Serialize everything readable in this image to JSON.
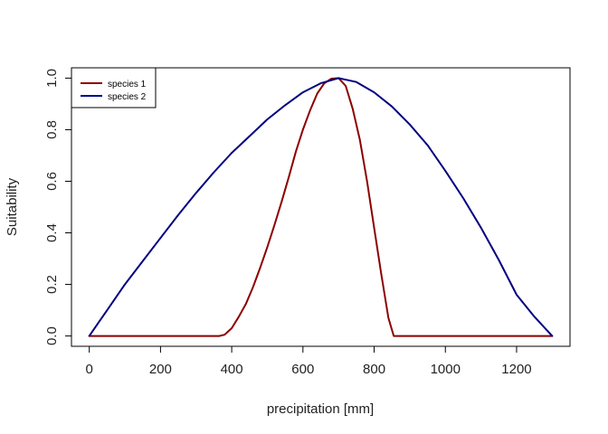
{
  "chart_data": {
    "type": "line",
    "title": "",
    "xlabel": "precipitation [mm]",
    "ylabel": "Suitability",
    "xlim": [
      -50,
      1350
    ],
    "ylim": [
      -0.04,
      1.04
    ],
    "xticks": [
      0,
      200,
      400,
      600,
      800,
      1000,
      1200
    ],
    "yticks": [
      0.0,
      0.2,
      0.4,
      0.6,
      0.8,
      1.0
    ],
    "xtick_labels": [
      "0",
      "200",
      "400",
      "600",
      "800",
      "1000",
      "1200"
    ],
    "ytick_labels": [
      "0.0",
      "0.2",
      "0.4",
      "0.6",
      "0.8",
      "1.0"
    ],
    "legend_position": "top-left",
    "grid": false,
    "series": [
      {
        "name": "species 1",
        "color": "#8B0000",
        "x": [
          0,
          100,
          200,
          300,
          365,
          380,
          400,
          420,
          440,
          460,
          480,
          500,
          520,
          540,
          560,
          580,
          600,
          620,
          640,
          660,
          680,
          700,
          720,
          740,
          760,
          780,
          800,
          820,
          840,
          855,
          900,
          1000,
          1100,
          1200,
          1300
        ],
        "y": [
          0,
          0,
          0,
          0,
          0,
          0.005,
          0.03,
          0.075,
          0.125,
          0.19,
          0.265,
          0.345,
          0.43,
          0.52,
          0.615,
          0.715,
          0.8,
          0.875,
          0.94,
          0.98,
          0.998,
          1.0,
          0.97,
          0.88,
          0.76,
          0.6,
          0.42,
          0.24,
          0.07,
          0,
          0,
          0,
          0,
          0,
          0
        ]
      },
      {
        "name": "species 2",
        "color": "#000080",
        "x": [
          0,
          25,
          50,
          75,
          100,
          150,
          200,
          250,
          300,
          350,
          400,
          450,
          500,
          550,
          600,
          650,
          700,
          750,
          800,
          850,
          900,
          950,
          1000,
          1050,
          1100,
          1150,
          1200,
          1250,
          1300
        ],
        "y": [
          0,
          0.05,
          0.1,
          0.15,
          0.2,
          0.29,
          0.38,
          0.47,
          0.555,
          0.635,
          0.71,
          0.775,
          0.84,
          0.895,
          0.945,
          0.98,
          1.0,
          0.985,
          0.945,
          0.89,
          0.82,
          0.74,
          0.64,
          0.535,
          0.42,
          0.295,
          0.16,
          0.075,
          0
        ]
      }
    ]
  }
}
